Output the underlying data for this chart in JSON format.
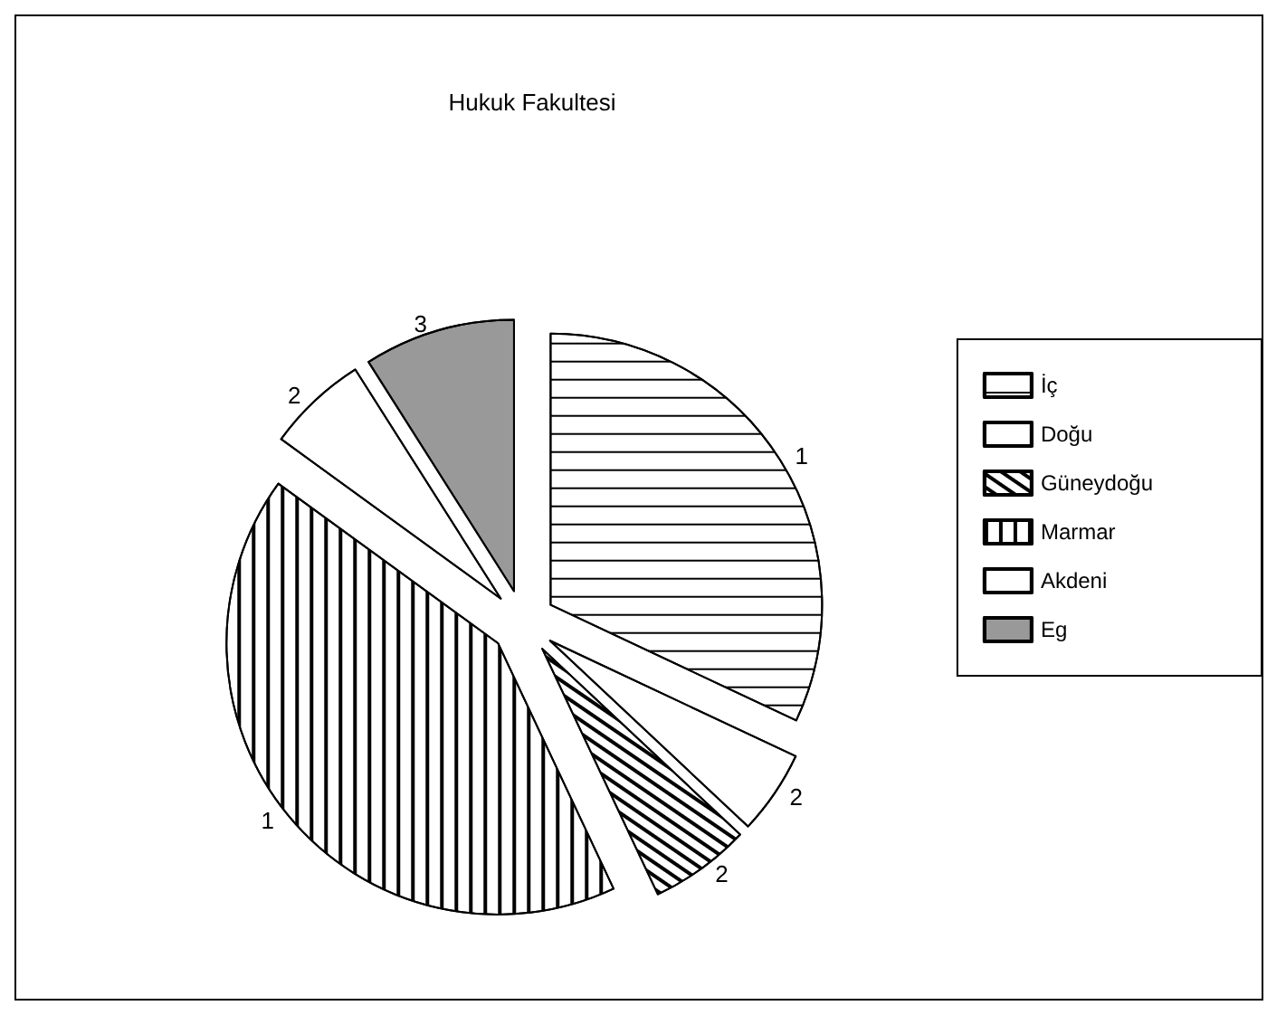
{
  "chart_data": {
    "type": "pie",
    "title": "Hukuk Fakultesi",
    "categories": [
      "İç",
      "Doğu",
      "Güneydoğu",
      "Marmar",
      "Akdeni",
      "Eg"
    ],
    "values": [
      32,
      5,
      6,
      42,
      6,
      9
    ],
    "colors": [
      "#ffffff",
      "#ffffff",
      "#ffffff",
      "#ffffff",
      "#ffffff",
      "#999999"
    ],
    "annotations": [
      "1",
      "2",
      "2",
      "1",
      "2",
      "3"
    ],
    "legend": "right"
  }
}
